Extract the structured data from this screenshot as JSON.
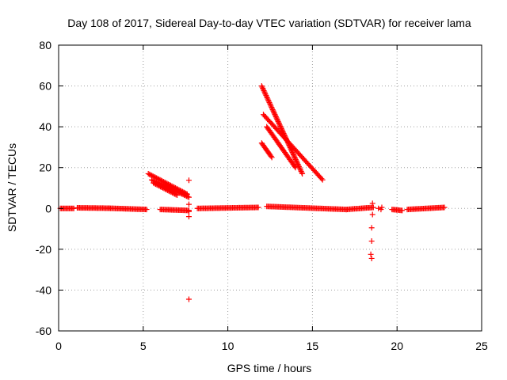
{
  "chart_data": {
    "type": "scatter",
    "title": "Day 108 of 2017, Sidereal Day-to-day VTEC variation (SDTVAR) for receiver lama",
    "xlabel": "GPS time / hours",
    "ylabel": "SDTVAR / TECUs",
    "xlim": [
      0,
      25
    ],
    "ylim": [
      -60,
      80
    ],
    "xticks": [
      0,
      5,
      10,
      15,
      20,
      25
    ],
    "yticks": [
      -60,
      -40,
      -20,
      0,
      20,
      40,
      60,
      80
    ],
    "grid": true,
    "marker": "plus",
    "color": "#ff0000",
    "series": [
      {
        "name": "SDTVAR",
        "segments": [
          {
            "x": [
              0.1,
              0.9
            ],
            "y": [
              0.0,
              0.0
            ]
          },
          {
            "x": [
              1.1,
              3.0
            ],
            "y": [
              0.3,
              0.1
            ]
          },
          {
            "x": [
              3.0,
              5.2
            ],
            "y": [
              0.1,
              -0.5
            ]
          },
          {
            "x": [
              5.3,
              7.6
            ],
            "y": [
              17.0,
              7.0
            ]
          },
          {
            "x": [
              5.5,
              7.7
            ],
            "y": [
              14.0,
              5.5
            ]
          },
          {
            "x": [
              5.6,
              7.0
            ],
            "y": [
              12.5,
              6.5
            ]
          },
          {
            "x": [
              6.0,
              7.7
            ],
            "y": [
              -0.5,
              -1.0
            ]
          },
          {
            "x": [
              8.2,
              11.8
            ],
            "y": [
              0.0,
              0.5
            ]
          },
          {
            "x": [
              12.0,
              14.4
            ],
            "y": [
              60.0,
              17.0
            ]
          },
          {
            "x": [
              12.1,
              15.6
            ],
            "y": [
              46.0,
              14.0
            ]
          },
          {
            "x": [
              12.3,
              14.0
            ],
            "y": [
              40.0,
              20.0
            ]
          },
          {
            "x": [
              12.0,
              12.6
            ],
            "y": [
              32.0,
              25.0
            ]
          },
          {
            "x": [
              12.3,
              17.0
            ],
            "y": [
              1.0,
              -0.5
            ]
          },
          {
            "x": [
              17.0,
              18.6
            ],
            "y": [
              -0.5,
              0.5
            ]
          },
          {
            "x": [
              19.7,
              20.3
            ],
            "y": [
              -0.5,
              -1.0
            ]
          },
          {
            "x": [
              20.6,
              22.8
            ],
            "y": [
              -0.5,
              0.5
            ]
          }
        ],
        "points": [
          {
            "x": 7.7,
            "y": 13.8
          },
          {
            "x": 7.7,
            "y": -44.5
          },
          {
            "x": 7.7,
            "y": -4.0
          },
          {
            "x": 7.7,
            "y": -1.5
          },
          {
            "x": 7.7,
            "y": 2.0
          },
          {
            "x": 18.55,
            "y": 2.5
          },
          {
            "x": 18.55,
            "y": -3.0
          },
          {
            "x": 18.5,
            "y": -9.5
          },
          {
            "x": 18.5,
            "y": -16.0
          },
          {
            "x": 18.45,
            "y": -22.5
          },
          {
            "x": 18.5,
            "y": -24.5
          },
          {
            "x": 18.9,
            "y": 0.0
          },
          {
            "x": 19.05,
            "y": -0.5
          },
          {
            "x": 19.1,
            "y": 0.5
          }
        ]
      }
    ]
  }
}
